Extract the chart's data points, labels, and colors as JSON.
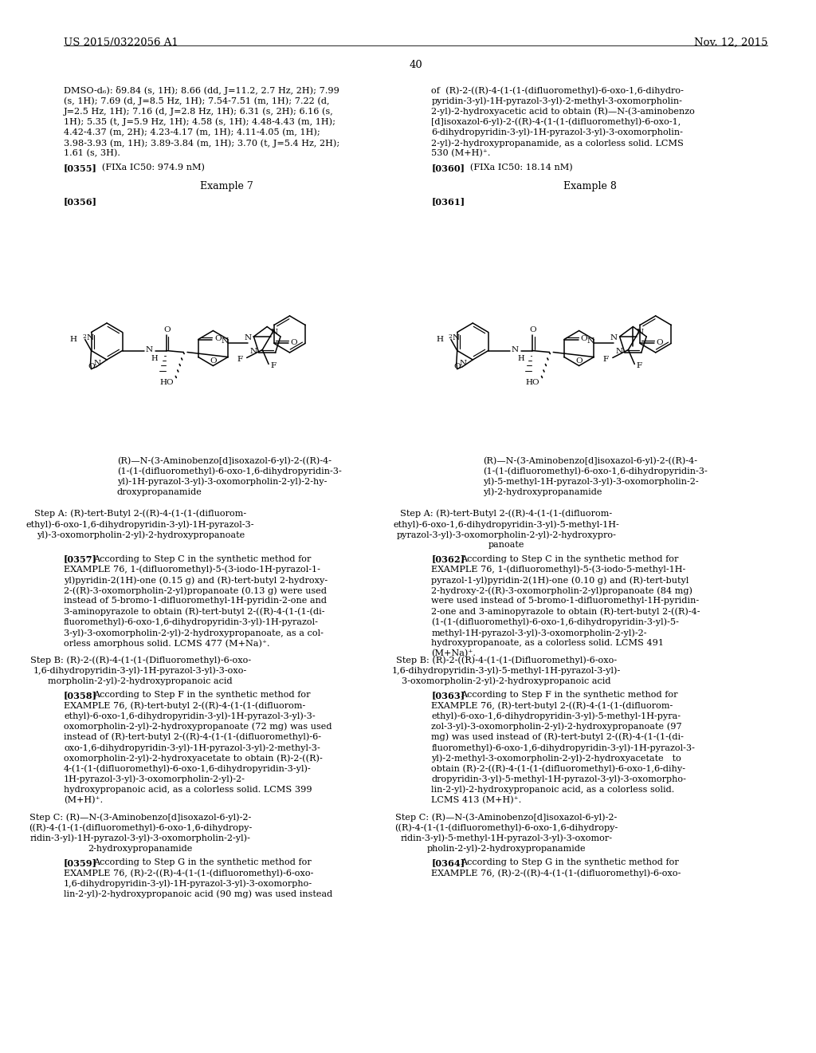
{
  "bg": "#ffffff",
  "header_left": "US 2015/0322056 A1",
  "header_right": "Nov. 12, 2015",
  "page_num": "40",
  "left_top": [
    "DMSO-d₆): δ9.84 (s, 1H); 8.66 (dd, J=11.2, 2.7 Hz, 2H); 7.99",
    "(s, 1H); 7.69 (d, J=8.5 Hz, 1H); 7.54-7.51 (m, 1H); 7.22 (d,",
    "J=2.5 Hz, 1H); 7.16 (d, J=2.8 Hz, 1H); 6.31 (s, 2H); 6.16 (s,",
    "1H); 5.35 (t, J=5.9 Hz, 1H); 4.58 (s, 1H); 4.48-4.43 (m, 1H);",
    "4.42-4.37 (m, 2H); 4.23-4.17 (m, 1H); 4.11-4.05 (m, 1H);",
    "3.98-3.93 (m, 1H); 3.89-3.84 (m, 1H); 3.70 (t, J=5.4 Hz, 2H);",
    "1.61 (s, 3H)."
  ],
  "right_top": [
    "of  (R)-2-((R)-4-(1-(1-(difluoromethyl)-6-oxo-1,6-dihydro-",
    "pyridin-3-yl)-1H-pyrazol-3-yl)-2-methyl-3-oxomorpholin-",
    "2-yl)-2-hydroxyacetic acid to obtain (R)—N-(3-aminobenzo",
    "[d]isoxazol-6-yl)-2-((R)-4-(1-(1-(difluoromethyl)-6-oxo-1,",
    "6-dihydropyridin-3-yl)-1H-pyrazol-3-yl)-3-oxomorpholin-",
    "2-yl)-2-hydroxypropanamide, as a colorless solid. LCMS",
    "530 (M+H)⁺."
  ],
  "ref355_bold": "[0355]",
  "ref355_text": "   (FIXa IC50: 974.9 nM)",
  "ref360_bold": "[0360]",
  "ref360_text": "   (FIXa IC50: 18.14 nM)",
  "ex7": "Example 7",
  "ex8": "Example 8",
  "ref356": "[0356]",
  "ref361": "[0361]",
  "left_name": [
    "(R)—N-(3-Aminobenzo[d]isoxazol-6-yl)-2-((R)-4-",
    "(1-(1-(difluoromethyl)-6-oxo-1,6-dihydropyridin-3-",
    "yl)-1H-pyrazol-3-yl)-3-oxomorpholin-2-yl)-2-hy-",
    "droxypropanamide"
  ],
  "right_name": [
    "(R)—N-(3-Aminobenzo[d]isoxazol-6-yl)-2-((R)-4-",
    "(1-(1-(difluoromethyl)-6-oxo-1,6-dihydropyridin-3-",
    "yl)-5-methyl-1H-pyrazol-3-yl)-3-oxomorpholin-2-",
    "yl)-2-hydroxypropanamide"
  ],
  "stepa_left": [
    "Step A: (R)-tert-Butyl 2-((R)-4-(1-(1-(difluorom-",
    "ethyl)-6-oxo-1,6-dihydropyridin-3-yl)-1H-pyrazol-3-",
    "yl)-3-oxomorpholin-2-yl)-2-hydroxypropanoate"
  ],
  "stepa_right": [
    "Step A: (R)-tert-Butyl 2-((R)-4-(1-(1-(difluorom-",
    "ethyl)-6-oxo-1,6-dihydropyridin-3-yl)-5-methyl-1H-",
    "pyrazol-3-yl)-3-oxomorpholin-2-yl)-2-hydroxypro-",
    "panoate"
  ],
  "ref357": "[0357]",
  "ref357_body": [
    "According to Step C in the synthetic method for",
    "EXAMPLE 76, 1-(difluoromethyl)-5-(3-iodo-1H-pyrazol-1-",
    "yl)pyridin-2(1H)-one (0.15 g) and (R)-tert-butyl 2-hydroxy-",
    "2-((R)-3-oxomorpholin-2-yl)propanoate (0.13 g) were used",
    "instead of 5-bromo-1-difluoromethyl-1H-pyridin-2-one and",
    "3-aminopyrazole to obtain (R)-tert-butyl 2-((R)-4-(1-(1-(di-",
    "fluoromethyl)-6-oxo-1,6-dihydropyridin-3-yl)-1H-pyrazol-",
    "3-yl)-3-oxomorpholin-2-yl)-2-hydroxypropanoate, as a col-",
    "orless amorphous solid. LCMS 477 (M+Na)⁺."
  ],
  "ref362": "[0362]",
  "ref362_body": [
    "According to Step C in the synthetic method for",
    "EXAMPLE 76, 1-(difluoromethyl)-5-(3-iodo-5-methyl-1H-",
    "pyrazol-1-yl)pyridin-2(1H)-one (0.10 g) and (R)-tert-butyl",
    "2-hydroxy-2-((R)-3-oxomorpholin-2-yl)propanoate (84 mg)",
    "were used instead of 5-bromo-1-difluoromethyl-1H-pyridin-",
    "2-one and 3-aminopyrazole to obtain (R)-tert-butyl 2-((R)-4-",
    "(1-(1-(difluoromethyl)-6-oxo-1,6-dihydropyridin-3-yl)-5-",
    "methyl-1H-pyrazol-3-yl)-3-oxomorpholin-2-yl)-2-",
    "hydroxypropanoate, as a colorless solid. LCMS 491",
    "(M+Na)⁺."
  ],
  "stepb_left": [
    "Step B: (R)-2-((R)-4-(1-(1-(Difluoromethyl)-6-oxo-",
    "1,6-dihydropyridin-3-yl)-1H-pyrazol-3-yl)-3-oxo-",
    "morpholin-2-yl)-2-hydroxypropanoic acid"
  ],
  "stepb_right": [
    "Step B: (R)-2-((R)-4-(1-(1-(Difluoromethyl)-6-oxo-",
    "1,6-dihydropyridin-3-yl)-5-methyl-1H-pyrazol-3-yl)-",
    "3-oxomorpholin-2-yl)-2-hydroxypropanoic acid"
  ],
  "ref358": "[0358]",
  "ref358_body": [
    "According to Step F in the synthetic method for",
    "EXAMPLE 76, (R)-tert-butyl 2-((R)-4-(1-(1-(difluorom-",
    "ethyl)-6-oxo-1,6-dihydropyridin-3-yl)-1H-pyrazol-3-yl)-3-",
    "oxomorpholin-2-yl)-2-hydroxypropanoate (72 mg) was used",
    "instead of (R)-tert-butyl 2-((R)-4-(1-(1-(difluoromethyl)-6-",
    "oxo-1,6-dihydropyridin-3-yl)-1H-pyrazol-3-yl)-2-methyl-3-",
    "oxomorpholin-2-yl)-2-hydroxyacetate to obtain (R)-2-((R)-",
    "4-(1-(1-(difluoromethyl)-6-oxo-1,6-dihydropyridin-3-yl)-",
    "1H-pyrazol-3-yl)-3-oxomorpholin-2-yl)-2-",
    "hydroxypropanoic acid, as a colorless solid. LCMS 399",
    "(M+H)⁺."
  ],
  "ref363": "[0363]",
  "ref363_body": [
    "According to Step F in the synthetic method for",
    "EXAMPLE 76, (R)-tert-butyl 2-((R)-4-(1-(1-(difluorom-",
    "ethyl)-6-oxo-1,6-dihydropyridin-3-yl)-5-methyl-1H-pyra-",
    "zol-3-yl)-3-oxomorpholin-2-yl)-2-hydroxypropanoate (97",
    "mg) was used instead of (R)-tert-butyl 2-((R)-4-(1-(1-(di-",
    "fluoromethyl)-6-oxo-1,6-dihydropyridin-3-yl)-1H-pyrazol-3-",
    "yl)-2-methyl-3-oxomorpholin-2-yl)-2-hydroxyacetate   to",
    "obtain (R)-2-((R)-4-(1-(1-(difluoromethyl)-6-oxo-1,6-dihy-",
    "dropyridin-3-yl)-5-methyl-1H-pyrazol-3-yl)-3-oxomorpho-",
    "lin-2-yl)-2-hydroxypropanoic acid, as a colorless solid.",
    "LCMS 413 (M+H)⁺."
  ],
  "stepc_left": [
    "Step C: (R)—N-(3-Aminobenzo[d]isoxazol-6-yl)-2-",
    "((R)-4-(1-(1-(difluoromethyl)-6-oxo-1,6-dihydropy-",
    "ridin-3-yl)-1H-pyrazol-3-yl)-3-oxomorpholin-2-yl)-",
    "2-hydroxypropanamide"
  ],
  "ref359": "[0359]",
  "ref359_body": [
    "According to Step G in the synthetic method for",
    "EXAMPLE 76, (R)-2-((R)-4-(1-(1-(difluoromethyl)-6-oxo-",
    "1,6-dihydropyridin-3-yl)-1H-pyrazol-3-yl)-3-oxomorpho-",
    "lin-2-yl)-2-hydroxypropanoic acid (90 mg) was used instead"
  ],
  "stepc_right": [
    "Step C: (R)—N-(3-Aminobenzo[d]isoxazol-6-yl)-2-",
    "((R)-4-(1-(1-(difluoromethyl)-6-oxo-1,6-dihydropy-",
    "ridin-3-yl)-5-methyl-1H-pyrazol-3-yl)-3-oxomor-",
    "pholin-2-yl)-2-hydroxypropanamide"
  ],
  "ref364": "[0364]",
  "ref364_body": [
    "According to Step G in the synthetic method for",
    "EXAMPLE 76, (R)-2-((R)-4-(1-(1-(difluoromethyl)-6-oxo-"
  ]
}
